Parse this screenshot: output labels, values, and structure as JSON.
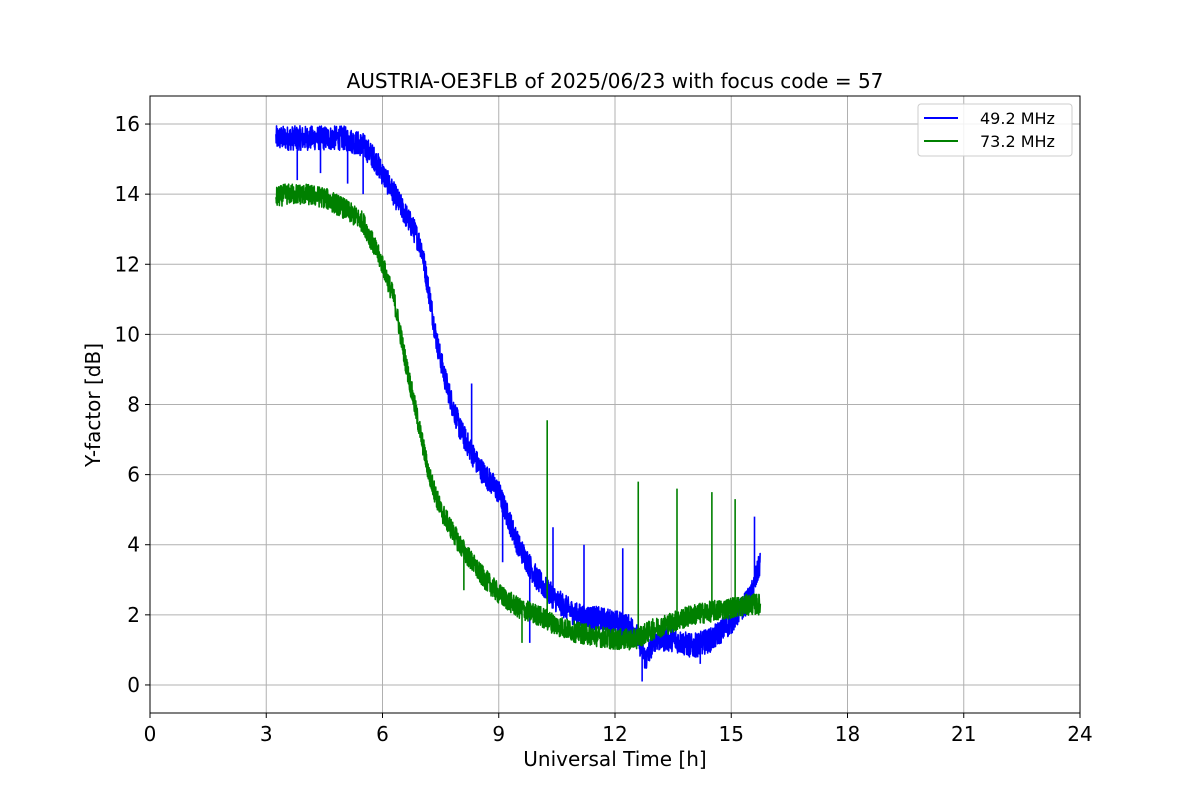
{
  "chart_data": {
    "type": "line",
    "title": "AUSTRIA-OE3FLB of 2025/06/23 with focus code = 57",
    "xlabel": "Universal Time [h]",
    "ylabel": "Y-factor [dB]",
    "xlim": [
      0,
      24
    ],
    "ylim": [
      -0.8,
      16.8
    ],
    "xticks": [
      0,
      3,
      6,
      9,
      12,
      15,
      18,
      21,
      24
    ],
    "yticks": [
      0,
      2,
      4,
      6,
      8,
      10,
      12,
      14,
      16
    ],
    "grid": true,
    "legend_position": "top-right",
    "series": [
      {
        "name": "49.2 MHz",
        "color": "#0000ff",
        "noise": 0.35,
        "x": [
          3.25,
          3.5,
          4.0,
          4.5,
          5.0,
          5.5,
          5.8,
          6.0,
          6.2,
          6.5,
          6.8,
          7.0,
          7.2,
          7.4,
          7.6,
          7.8,
          8.0,
          8.5,
          9.0,
          9.5,
          10.0,
          10.5,
          11.0,
          11.5,
          12.0,
          12.5,
          12.8,
          13.0,
          13.5,
          14.0,
          14.5,
          15.0,
          15.5,
          15.75
        ],
        "y": [
          15.6,
          15.6,
          15.6,
          15.6,
          15.6,
          15.4,
          15.0,
          14.6,
          14.2,
          13.6,
          13.0,
          12.5,
          11.2,
          9.8,
          8.8,
          8.0,
          7.3,
          6.2,
          5.5,
          4.0,
          3.0,
          2.4,
          2.0,
          1.9,
          1.8,
          1.6,
          0.7,
          1.3,
          1.3,
          1.1,
          1.3,
          1.8,
          2.5,
          3.5
        ],
        "spikes": [
          [
            3.8,
            14.4
          ],
          [
            4.4,
            14.6
          ],
          [
            5.1,
            14.3
          ],
          [
            5.5,
            14.0
          ],
          [
            8.3,
            8.6
          ],
          [
            9.1,
            3.5
          ],
          [
            9.8,
            1.2
          ],
          [
            10.4,
            4.5
          ],
          [
            11.2,
            4.0
          ],
          [
            12.2,
            3.9
          ],
          [
            12.7,
            0.1
          ],
          [
            14.2,
            0.6
          ],
          [
            15.6,
            4.8
          ]
        ]
      },
      {
        "name": "73.2 MHz",
        "color": "#008000",
        "noise": 0.3,
        "x": [
          3.25,
          3.5,
          4.0,
          4.5,
          5.0,
          5.5,
          6.0,
          6.3,
          6.6,
          6.9,
          7.2,
          7.5,
          8.0,
          8.5,
          9.0,
          9.5,
          10.0,
          10.5,
          11.0,
          11.5,
          12.0,
          12.5,
          13.0,
          13.5,
          14.0,
          14.5,
          15.0,
          15.5,
          15.75
        ],
        "y": [
          13.9,
          14.0,
          14.0,
          13.9,
          13.6,
          13.2,
          12.0,
          11.0,
          9.2,
          7.6,
          6.0,
          5.0,
          4.0,
          3.2,
          2.6,
          2.2,
          2.0,
          1.7,
          1.5,
          1.4,
          1.3,
          1.3,
          1.6,
          1.8,
          2.0,
          2.1,
          2.2,
          2.3,
          2.3
        ],
        "spikes": [
          [
            10.25,
            7.55
          ],
          [
            12.6,
            5.8
          ],
          [
            13.6,
            5.6
          ],
          [
            14.5,
            5.5
          ],
          [
            15.1,
            5.3
          ],
          [
            8.1,
            2.7
          ],
          [
            9.6,
            1.2
          ]
        ]
      }
    ]
  }
}
